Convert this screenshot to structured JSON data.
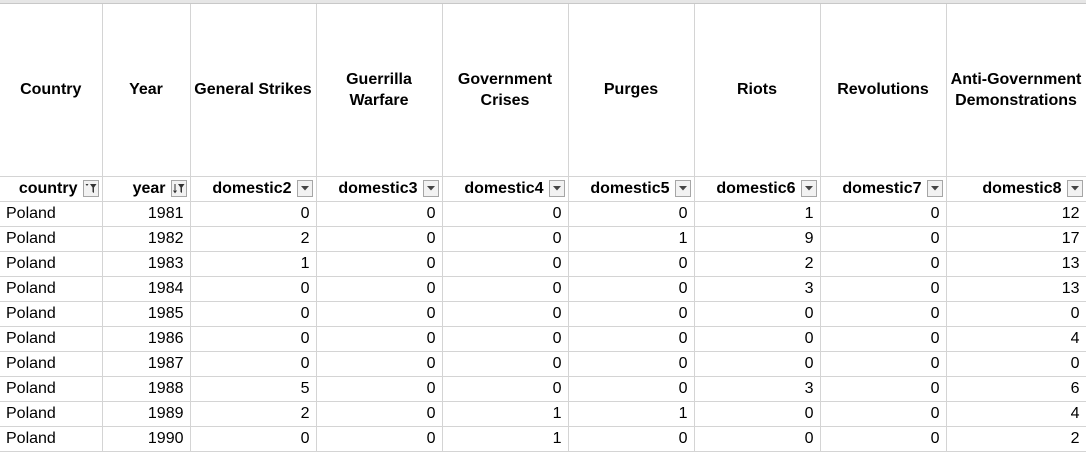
{
  "headers": [
    "Country",
    "Year",
    "General Strikes",
    "Guerrilla Warfare",
    "Government Crises",
    "Purges",
    "Riots",
    "Revolutions",
    "Anti-Government Demonstrations"
  ],
  "filter_fields": [
    {
      "name": "country",
      "icon": "filter-active-icon"
    },
    {
      "name": "year",
      "icon": "sort-filter-icon"
    },
    {
      "name": "domestic2",
      "icon": "dropdown-arrow-icon"
    },
    {
      "name": "domestic3",
      "icon": "dropdown-arrow-icon"
    },
    {
      "name": "domestic4",
      "icon": "dropdown-arrow-icon"
    },
    {
      "name": "domestic5",
      "icon": "dropdown-arrow-icon"
    },
    {
      "name": "domestic6",
      "icon": "dropdown-arrow-icon"
    },
    {
      "name": "domestic7",
      "icon": "dropdown-arrow-icon"
    },
    {
      "name": "domestic8",
      "icon": "dropdown-arrow-icon"
    }
  ],
  "rows": [
    [
      "Poland",
      "1981",
      "0",
      "0",
      "0",
      "0",
      "1",
      "0",
      "12"
    ],
    [
      "Poland",
      "1982",
      "2",
      "0",
      "0",
      "1",
      "9",
      "0",
      "17"
    ],
    [
      "Poland",
      "1983",
      "1",
      "0",
      "0",
      "0",
      "2",
      "0",
      "13"
    ],
    [
      "Poland",
      "1984",
      "0",
      "0",
      "0",
      "0",
      "3",
      "0",
      "13"
    ],
    [
      "Poland",
      "1985",
      "0",
      "0",
      "0",
      "0",
      "0",
      "0",
      "0"
    ],
    [
      "Poland",
      "1986",
      "0",
      "0",
      "0",
      "0",
      "0",
      "0",
      "4"
    ],
    [
      "Poland",
      "1987",
      "0",
      "0",
      "0",
      "0",
      "0",
      "0",
      "0"
    ],
    [
      "Poland",
      "1988",
      "5",
      "0",
      "0",
      "0",
      "3",
      "0",
      "6"
    ],
    [
      "Poland",
      "1989",
      "2",
      "0",
      "1",
      "1",
      "0",
      "0",
      "4"
    ],
    [
      "Poland",
      "1990",
      "0",
      "0",
      "1",
      "0",
      "0",
      "0",
      "2"
    ]
  ]
}
